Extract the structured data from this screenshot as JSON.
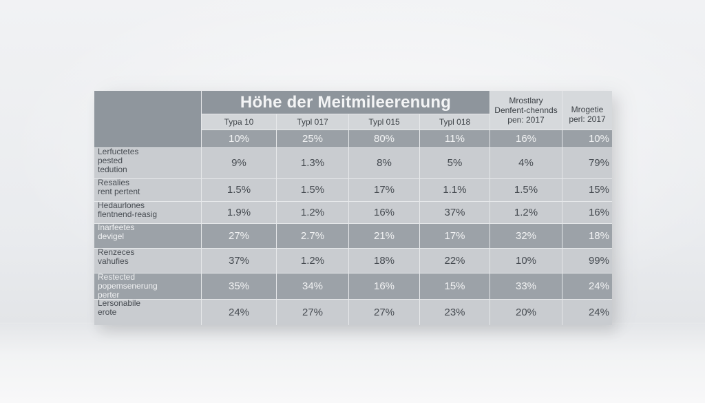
{
  "table": {
    "title": "Höhe der Meitmileerenung",
    "columns": [
      "Typa 10",
      "Typl 017",
      "Typl 015",
      "Typl 018"
    ],
    "extra_columns": [
      {
        "line1": "Mrostlary",
        "line2": "Denfent-chennds",
        "line3": "pen: 2017"
      },
      {
        "line1": "Mrogetie",
        "line2": "perl: 2017"
      }
    ],
    "top_values": [
      "10%",
      "25%",
      "80%",
      "11%",
      "16%",
      "10%"
    ],
    "rows": [
      {
        "label": [
          "Lerfuctetes",
          "pested",
          "tedution"
        ],
        "values": [
          "9%",
          "1.3%",
          "8%",
          "5%",
          "4%",
          "79%"
        ]
      },
      {
        "label": [
          "Resalies",
          "rent pertent"
        ],
        "values": [
          "1.5%",
          "1.5%",
          "17%",
          "1.1%",
          "1.5%",
          "15%"
        ]
      },
      {
        "label": [
          "Hedaurlones",
          "flentnend-reasig"
        ],
        "values": [
          "1.9%",
          "1.2%",
          "16%",
          "37%",
          "1.2%",
          "16%"
        ]
      },
      {
        "label": [
          "Inarfeetes",
          "devigel"
        ],
        "values": [
          "27%",
          "2.7%",
          "21%",
          "17%",
          "32%",
          "18%"
        ]
      },
      {
        "label": [
          "Renzeces",
          "vahufies"
        ],
        "values": [
          "37%",
          "1.2%",
          "18%",
          "22%",
          "10%",
          "99%"
        ]
      },
      {
        "label": [
          "Restected",
          "popemsenerung",
          "perter"
        ],
        "values": [
          "35%",
          "34%",
          "16%",
          "15%",
          "33%",
          "24%"
        ]
      },
      {
        "label": [
          "Lersonabile",
          "erote"
        ],
        "values": [
          "24%",
          "27%",
          "27%",
          "23%",
          "20%",
          "24%"
        ]
      }
    ]
  },
  "colors": {
    "header_dark": "#8e959c",
    "row_light": "#c9ccd0",
    "row_dark": "#9ca2a8",
    "wall": "#eceef0"
  }
}
